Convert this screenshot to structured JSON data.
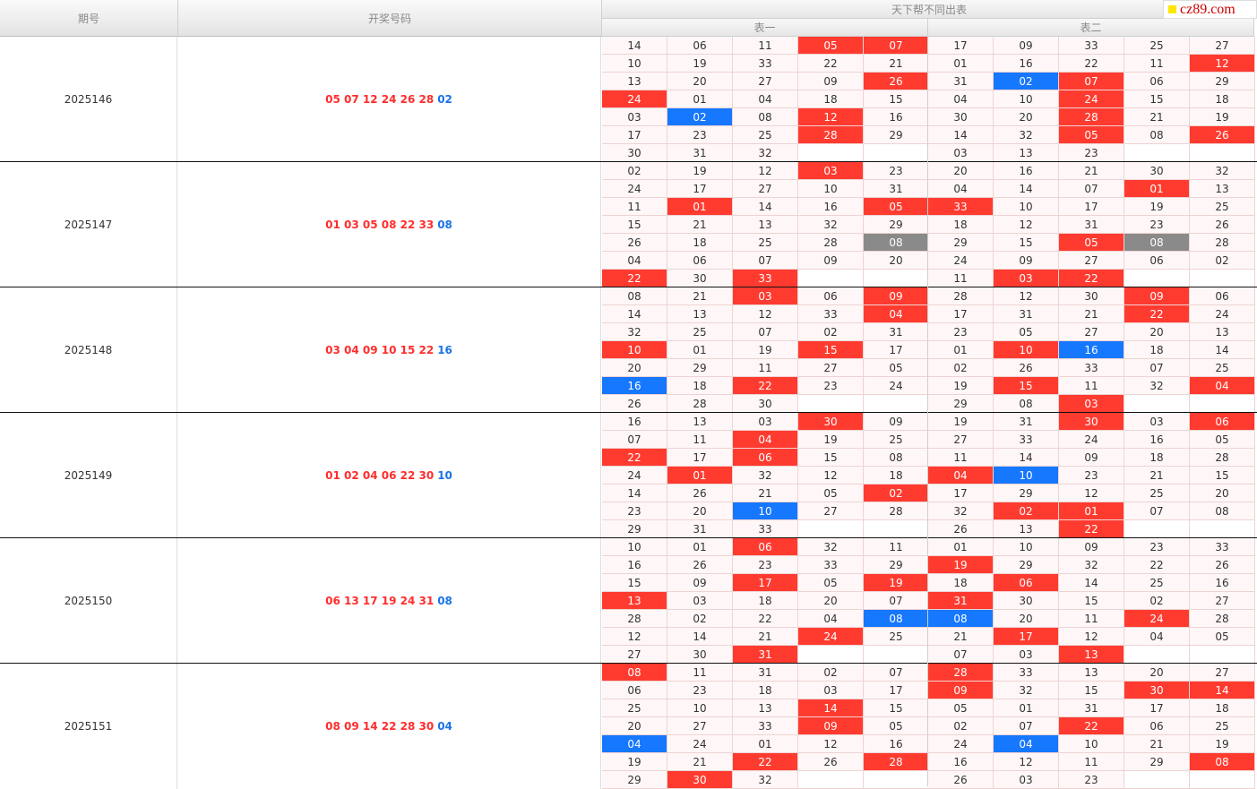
{
  "header": {
    "col_period": "期号",
    "col_draw": "开奖号码",
    "group_title": "天下帮不同出表",
    "table1": "表一",
    "table2": "表二",
    "logo_text": "cz89.com"
  },
  "rows": [
    {
      "period": "2025146",
      "red": "05 07 12 24 26 28",
      "blue": "02",
      "t1": [
        [
          "14",
          "06",
          "11",
          "05",
          "07"
        ],
        [
          "10",
          "19",
          "33",
          "22",
          "21"
        ],
        [
          "13",
          "20",
          "27",
          "09",
          "26"
        ],
        [
          "24",
          "01",
          "04",
          "18",
          "15"
        ],
        [
          "03",
          "02",
          "08",
          "12",
          "16"
        ],
        [
          "17",
          "23",
          "25",
          "28",
          "29"
        ],
        [
          "30",
          "31",
          "32",
          "",
          ""
        ]
      ],
      "m1": [
        [
          "",
          "",
          "",
          "r",
          "r"
        ],
        [
          "",
          "",
          "",
          "",
          ""
        ],
        [
          "",
          "",
          "",
          "",
          "r"
        ],
        [
          "r",
          "",
          "",
          "",
          ""
        ],
        [
          "",
          "b",
          "",
          "r",
          ""
        ],
        [
          "",
          "",
          "",
          "r",
          ""
        ],
        [
          "",
          "",
          "",
          "e",
          "e"
        ]
      ],
      "t2": [
        [
          "17",
          "09",
          "33",
          "25",
          "27"
        ],
        [
          "01",
          "16",
          "22",
          "11",
          "12"
        ],
        [
          "31",
          "02",
          "07",
          "06",
          "29"
        ],
        [
          "04",
          "10",
          "24",
          "15",
          "18"
        ],
        [
          "30",
          "20",
          "28",
          "21",
          "19"
        ],
        [
          "14",
          "32",
          "05",
          "08",
          "26"
        ],
        [
          "03",
          "13",
          "23",
          "",
          ""
        ]
      ],
      "m2": [
        [
          "",
          "",
          "",
          "",
          ""
        ],
        [
          "",
          "",
          "",
          "",
          "r"
        ],
        [
          "",
          "b",
          "r",
          "",
          ""
        ],
        [
          "",
          "",
          "r",
          "",
          ""
        ],
        [
          "",
          "",
          "r",
          "",
          ""
        ],
        [
          "",
          "",
          "r",
          "",
          "r"
        ],
        [
          "",
          "",
          "",
          "e",
          "e"
        ]
      ]
    },
    {
      "period": "2025147",
      "red": "01 03 05 08 22 33",
      "blue": "08",
      "t1": [
        [
          "02",
          "19",
          "12",
          "03",
          "23"
        ],
        [
          "24",
          "17",
          "27",
          "10",
          "31"
        ],
        [
          "11",
          "01",
          "14",
          "16",
          "05"
        ],
        [
          "15",
          "21",
          "13",
          "32",
          "29"
        ],
        [
          "26",
          "18",
          "25",
          "28",
          "08"
        ],
        [
          "04",
          "06",
          "07",
          "09",
          "20"
        ],
        [
          "22",
          "30",
          "33",
          "",
          ""
        ]
      ],
      "m1": [
        [
          "",
          "",
          "",
          "r",
          ""
        ],
        [
          "",
          "",
          "",
          "",
          ""
        ],
        [
          "",
          "r",
          "",
          "",
          "r"
        ],
        [
          "",
          "",
          "",
          "",
          ""
        ],
        [
          "",
          "",
          "",
          "",
          "g"
        ],
        [
          "",
          "",
          "",
          "",
          ""
        ],
        [
          "r",
          "",
          "r",
          "e",
          "e"
        ]
      ],
      "t2": [
        [
          "20",
          "16",
          "21",
          "30",
          "32"
        ],
        [
          "04",
          "14",
          "07",
          "01",
          "13"
        ],
        [
          "33",
          "10",
          "17",
          "19",
          "25"
        ],
        [
          "18",
          "12",
          "31",
          "23",
          "26"
        ],
        [
          "29",
          "15",
          "05",
          "08",
          "28"
        ],
        [
          "24",
          "09",
          "27",
          "06",
          "02"
        ],
        [
          "11",
          "03",
          "22",
          "",
          ""
        ]
      ],
      "m2": [
        [
          "",
          "",
          "",
          "",
          ""
        ],
        [
          "",
          "",
          "",
          "r",
          ""
        ],
        [
          "r",
          "",
          "",
          "",
          ""
        ],
        [
          "",
          "",
          "",
          "",
          ""
        ],
        [
          "",
          "",
          "r",
          "g",
          ""
        ],
        [
          "",
          "",
          "",
          "",
          ""
        ],
        [
          "",
          "r",
          "r",
          "e",
          "e"
        ]
      ]
    },
    {
      "period": "2025148",
      "red": "03 04 09 10 15 22",
      "blue": "16",
      "t1": [
        [
          "08",
          "21",
          "03",
          "06",
          "09"
        ],
        [
          "14",
          "13",
          "12",
          "33",
          "04"
        ],
        [
          "32",
          "25",
          "07",
          "02",
          "31"
        ],
        [
          "10",
          "01",
          "19",
          "15",
          "17"
        ],
        [
          "20",
          "29",
          "11",
          "27",
          "05"
        ],
        [
          "16",
          "18",
          "22",
          "23",
          "24"
        ],
        [
          "26",
          "28",
          "30",
          "",
          ""
        ]
      ],
      "m1": [
        [
          "",
          "",
          "r",
          "",
          "r"
        ],
        [
          "",
          "",
          "",
          "",
          "r"
        ],
        [
          "",
          "",
          "",
          "",
          ""
        ],
        [
          "r",
          "",
          "",
          "r",
          ""
        ],
        [
          "",
          "",
          "",
          "",
          ""
        ],
        [
          "b",
          "",
          "r",
          "",
          ""
        ],
        [
          "",
          "",
          "",
          "e",
          "e"
        ]
      ],
      "t2": [
        [
          "28",
          "12",
          "30",
          "09",
          "06"
        ],
        [
          "17",
          "31",
          "21",
          "22",
          "24"
        ],
        [
          "23",
          "05",
          "27",
          "20",
          "13"
        ],
        [
          "01",
          "10",
          "16",
          "18",
          "14"
        ],
        [
          "02",
          "26",
          "33",
          "07",
          "25"
        ],
        [
          "19",
          "15",
          "11",
          "32",
          "04"
        ],
        [
          "29",
          "08",
          "03",
          "",
          ""
        ]
      ],
      "m2": [
        [
          "",
          "",
          "",
          "r",
          ""
        ],
        [
          "",
          "",
          "",
          "r",
          ""
        ],
        [
          "",
          "",
          "",
          "",
          ""
        ],
        [
          "",
          "r",
          "b",
          "",
          ""
        ],
        [
          "",
          "",
          "",
          "",
          ""
        ],
        [
          "",
          "r",
          "",
          "",
          "r"
        ],
        [
          "",
          "",
          "r",
          "e",
          "e"
        ]
      ]
    },
    {
      "period": "2025149",
      "red": "01 02 04 06 22 30",
      "blue": "10",
      "t1": [
        [
          "16",
          "13",
          "03",
          "30",
          "09"
        ],
        [
          "07",
          "11",
          "04",
          "19",
          "25"
        ],
        [
          "22",
          "17",
          "06",
          "15",
          "08"
        ],
        [
          "24",
          "01",
          "32",
          "12",
          "18"
        ],
        [
          "14",
          "26",
          "21",
          "05",
          "02"
        ],
        [
          "23",
          "20",
          "10",
          "27",
          "28"
        ],
        [
          "29",
          "31",
          "33",
          "",
          ""
        ]
      ],
      "m1": [
        [
          "",
          "",
          "",
          "r",
          ""
        ],
        [
          "",
          "",
          "r",
          "",
          ""
        ],
        [
          "r",
          "",
          "r",
          "",
          ""
        ],
        [
          "",
          "r",
          "",
          "",
          ""
        ],
        [
          "",
          "",
          "",
          "",
          "r"
        ],
        [
          "",
          "",
          "b",
          "",
          ""
        ],
        [
          "",
          "",
          "",
          "e",
          "e"
        ]
      ],
      "t2": [
        [
          "19",
          "31",
          "30",
          "03",
          "06"
        ],
        [
          "27",
          "33",
          "24",
          "16",
          "05"
        ],
        [
          "11",
          "14",
          "09",
          "18",
          "28"
        ],
        [
          "04",
          "10",
          "23",
          "21",
          "15"
        ],
        [
          "17",
          "29",
          "12",
          "25",
          "20"
        ],
        [
          "32",
          "02",
          "01",
          "07",
          "08"
        ],
        [
          "26",
          "13",
          "22",
          "",
          ""
        ]
      ],
      "m2": [
        [
          "",
          "",
          "r",
          "",
          "r"
        ],
        [
          "",
          "",
          "",
          "",
          ""
        ],
        [
          "",
          "",
          "",
          "",
          ""
        ],
        [
          "r",
          "b",
          "",
          "",
          ""
        ],
        [
          "",
          "",
          "",
          "",
          ""
        ],
        [
          "",
          "r",
          "r",
          "",
          ""
        ],
        [
          "",
          "",
          "r",
          "e",
          "e"
        ]
      ]
    },
    {
      "period": "2025150",
      "red": "06 13 17 19 24 31",
      "blue": "08",
      "t1": [
        [
          "10",
          "01",
          "06",
          "32",
          "11"
        ],
        [
          "16",
          "26",
          "23",
          "33",
          "29"
        ],
        [
          "15",
          "09",
          "17",
          "05",
          "19"
        ],
        [
          "13",
          "03",
          "18",
          "20",
          "07"
        ],
        [
          "28",
          "02",
          "22",
          "04",
          "08"
        ],
        [
          "12",
          "14",
          "21",
          "24",
          "25"
        ],
        [
          "27",
          "30",
          "31",
          "",
          ""
        ]
      ],
      "m1": [
        [
          "",
          "",
          "r",
          "",
          ""
        ],
        [
          "",
          "",
          "",
          "",
          ""
        ],
        [
          "",
          "",
          "r",
          "",
          "r"
        ],
        [
          "r",
          "",
          "",
          "",
          ""
        ],
        [
          "",
          "",
          "",
          "",
          "b"
        ],
        [
          "",
          "",
          "",
          "r",
          ""
        ],
        [
          "",
          "",
          "r",
          "e",
          "e"
        ]
      ],
      "t2": [
        [
          "01",
          "10",
          "09",
          "23",
          "33"
        ],
        [
          "19",
          "29",
          "32",
          "22",
          "26"
        ],
        [
          "18",
          "06",
          "14",
          "25",
          "16"
        ],
        [
          "31",
          "30",
          "15",
          "02",
          "27"
        ],
        [
          "08",
          "20",
          "11",
          "24",
          "28"
        ],
        [
          "21",
          "17",
          "12",
          "04",
          "05"
        ],
        [
          "07",
          "03",
          "13",
          "",
          ""
        ]
      ],
      "m2": [
        [
          "",
          "",
          "",
          "",
          ""
        ],
        [
          "r",
          "",
          "",
          "",
          ""
        ],
        [
          "",
          "r",
          "",
          "",
          ""
        ],
        [
          "r",
          "",
          "",
          "",
          ""
        ],
        [
          "b",
          "",
          "",
          "r",
          ""
        ],
        [
          "",
          "r",
          "",
          "",
          ""
        ],
        [
          "",
          "",
          "r",
          "e",
          "e"
        ]
      ]
    },
    {
      "period": "2025151",
      "red": "08 09 14 22 28 30",
      "blue": "04",
      "t1": [
        [
          "08",
          "11",
          "31",
          "02",
          "07"
        ],
        [
          "06",
          "23",
          "18",
          "03",
          "17"
        ],
        [
          "25",
          "10",
          "13",
          "14",
          "15"
        ],
        [
          "20",
          "27",
          "33",
          "09",
          "05"
        ],
        [
          "04",
          "24",
          "01",
          "12",
          "16"
        ],
        [
          "19",
          "21",
          "22",
          "26",
          "28"
        ],
        [
          "29",
          "30",
          "32",
          "",
          ""
        ]
      ],
      "m1": [
        [
          "r",
          "",
          "",
          "",
          ""
        ],
        [
          "",
          "",
          "",
          "",
          ""
        ],
        [
          "",
          "",
          "",
          "r",
          ""
        ],
        [
          "",
          "",
          "",
          "r",
          ""
        ],
        [
          "b",
          "",
          "",
          "",
          ""
        ],
        [
          "",
          "",
          "r",
          "",
          "r"
        ],
        [
          "",
          "r",
          "",
          "e",
          "e"
        ]
      ],
      "t2": [
        [
          "28",
          "33",
          "13",
          "20",
          "27"
        ],
        [
          "09",
          "32",
          "15",
          "30",
          "14"
        ],
        [
          "05",
          "01",
          "31",
          "17",
          "18"
        ],
        [
          "02",
          "07",
          "22",
          "06",
          "25"
        ],
        [
          "24",
          "04",
          "10",
          "21",
          "19"
        ],
        [
          "16",
          "12",
          "11",
          "29",
          "08"
        ],
        [
          "26",
          "03",
          "23",
          "",
          ""
        ]
      ],
      "m2": [
        [
          "r",
          "",
          "",
          "",
          ""
        ],
        [
          "r",
          "",
          "",
          "r",
          "r"
        ],
        [
          "",
          "",
          "",
          "",
          ""
        ],
        [
          "",
          "",
          "r",
          "",
          ""
        ],
        [
          "",
          "b",
          "",
          "",
          ""
        ],
        [
          "",
          "",
          "",
          "",
          "r"
        ],
        [
          "",
          "",
          "",
          "e",
          "e"
        ]
      ]
    }
  ]
}
